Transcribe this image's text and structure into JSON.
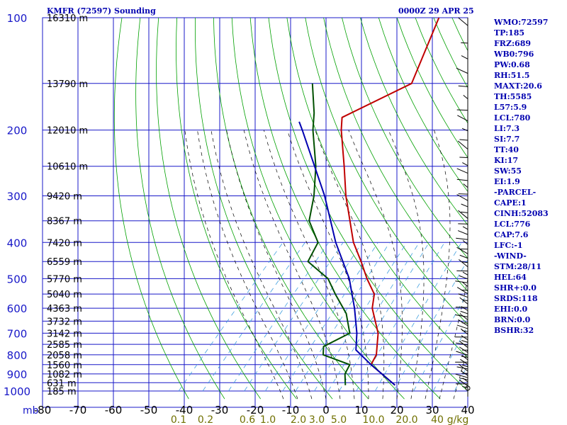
{
  "header": {
    "station": "KMFR (72597) Sounding",
    "time": "0000Z 29 APR 25"
  },
  "indices": [
    "WMO:72597",
    "TP:185",
    "FRZ:689",
    "WB0:796",
    "PW:0.68",
    "RH:51.5",
    "MAXT:20.6",
    "TH:5585",
    "L57:5.9",
    "LCL:780",
    "LI:7.3",
    "SI:7.7",
    "TT:40",
    "KI:17",
    "SW:55",
    "EI:1.9",
    "-PARCEL-",
    "CAPE:1",
    "CINH:52083",
    "LCL:776",
    "CAP:7.6",
    "LFC:-1",
    "-WIND-",
    "STM:28/11",
    "HEL:64",
    "SHR+:0.0",
    "SRDS:118",
    "EHI:0.0",
    "BRN:0.0",
    "BSHR:32"
  ],
  "colors": {
    "grid": "#1818c8",
    "pressure_label": "#1818c8",
    "temp_label": "#000000",
    "height_label": "#000000",
    "mixing_label": "#707000",
    "dry_adiabat": "#00a000",
    "moist_adiabat": "#000000",
    "mixing_ratio": "#3f9fdf",
    "temperature": "#c00000",
    "dewpoint": "#005000",
    "parcel": "#0000b0",
    "wind": "#000000"
  },
  "chart_data": {
    "type": "line",
    "title": "KMFR (72597) Sounding",
    "xlabel": "",
    "ylabel": "mb",
    "y_scale": "log",
    "ylim": [
      1000,
      100
    ],
    "xlim": [
      -80,
      40
    ],
    "pressure_ticks": [
      100,
      200,
      300,
      400,
      500,
      600,
      700,
      800,
      900,
      1000
    ],
    "temp_ticks": [
      -80,
      -70,
      -60,
      -50,
      -40,
      -30,
      -20,
      -10,
      0,
      10,
      20,
      30,
      40
    ],
    "mixing_ratio_labels": [
      "0.1",
      "0.2",
      "0.6",
      "1.0",
      "2.0",
      "3.0",
      "5.0",
      "10.0",
      "20.0",
      "40",
      "g/kg"
    ],
    "height_labels": [
      {
        "p": 100,
        "text": "16310 m"
      },
      {
        "p": 150,
        "text": "13790 m"
      },
      {
        "p": 200,
        "text": "12010 m"
      },
      {
        "p": 250,
        "text": "10610 m"
      },
      {
        "p": 300,
        "text": "9420 m"
      },
      {
        "p": 350,
        "text": "8367 m"
      },
      {
        "p": 400,
        "text": "7420 m"
      },
      {
        "p": 450,
        "text": "6559 m"
      },
      {
        "p": 500,
        "text": "5770 m"
      },
      {
        "p": 550,
        "text": "5040 m"
      },
      {
        "p": 600,
        "text": "4363 m"
      },
      {
        "p": 650,
        "text": "3732 m"
      },
      {
        "p": 700,
        "text": "3142 m"
      },
      {
        "p": 750,
        "text": "2585 m"
      },
      {
        "p": 800,
        "text": "2058 m"
      },
      {
        "p": 850,
        "text": "1560 m"
      },
      {
        "p": 900,
        "text": "1082 m"
      },
      {
        "p": 950,
        "text": "631 m"
      },
      {
        "p": 1000,
        "text": "185 m"
      }
    ],
    "series": [
      {
        "name": "temperature",
        "points": [
          {
            "p": 100,
            "t": -63
          },
          {
            "p": 150,
            "t": -54
          },
          {
            "p": 185,
            "t": -65
          },
          {
            "p": 200,
            "t": -62
          },
          {
            "p": 250,
            "t": -52
          },
          {
            "p": 300,
            "t": -44
          },
          {
            "p": 400,
            "t": -30
          },
          {
            "p": 450,
            "t": -23
          },
          {
            "p": 500,
            "t": -17
          },
          {
            "p": 550,
            "t": -11
          },
          {
            "p": 600,
            "t": -8
          },
          {
            "p": 700,
            "t": 0
          },
          {
            "p": 800,
            "t": 5
          },
          {
            "p": 850,
            "t": 6
          },
          {
            "p": 965,
            "t": 18
          }
        ]
      },
      {
        "name": "dewpoint",
        "points": [
          {
            "p": 150,
            "t": -82
          },
          {
            "p": 180,
            "t": -74
          },
          {
            "p": 200,
            "t": -70
          },
          {
            "p": 250,
            "t": -60
          },
          {
            "p": 300,
            "t": -53
          },
          {
            "p": 350,
            "t": -48
          },
          {
            "p": 400,
            "t": -40
          },
          {
            "p": 450,
            "t": -38
          },
          {
            "p": 500,
            "t": -28
          },
          {
            "p": 550,
            "t": -22
          },
          {
            "p": 620,
            "t": -14
          },
          {
            "p": 700,
            "t": -8
          },
          {
            "p": 760,
            "t": -12
          },
          {
            "p": 800,
            "t": -10
          },
          {
            "p": 850,
            "t": 0
          },
          {
            "p": 900,
            "t": 1
          },
          {
            "p": 965,
            "t": 4
          }
        ]
      },
      {
        "name": "parcel",
        "points": [
          {
            "p": 965,
            "t": 18
          },
          {
            "p": 850,
            "t": 6
          },
          {
            "p": 776,
            "t": -2
          },
          {
            "p": 700,
            "t": -6
          },
          {
            "p": 600,
            "t": -13
          },
          {
            "p": 500,
            "t": -22
          },
          {
            "p": 400,
            "t": -35
          },
          {
            "p": 300,
            "t": -50
          },
          {
            "p": 200,
            "t": -73
          },
          {
            "p": 190,
            "t": -76
          }
        ]
      }
    ]
  }
}
